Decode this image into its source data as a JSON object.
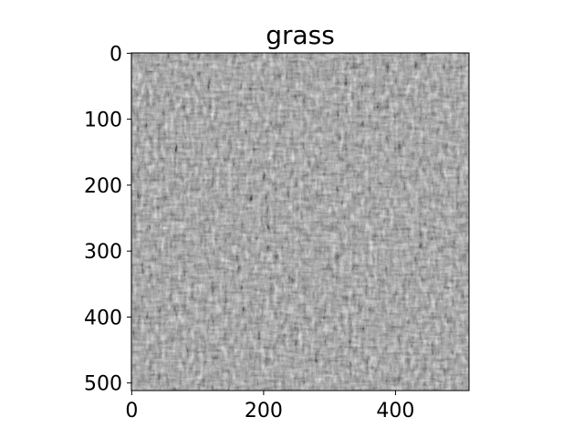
{
  "figure": {
    "title": "grass",
    "image": {
      "description": "",
      "colormap": "gray",
      "extent": {
        "x": [
          0,
          511
        ],
        "y": [
          0,
          511
        ]
      },
      "x_ticks": [
        {
          "value": 0,
          "label": "0"
        },
        {
          "value": 200,
          "label": "200"
        },
        {
          "value": 400,
          "label": "400"
        }
      ],
      "y_ticks": [
        {
          "value": 0,
          "label": "0"
        },
        {
          "value": 100,
          "label": "100"
        },
        {
          "value": 200,
          "label": "200"
        },
        {
          "value": 300,
          "label": "300"
        },
        {
          "value": 400,
          "label": "400"
        },
        {
          "value": 500,
          "label": "500"
        }
      ]
    }
  }
}
